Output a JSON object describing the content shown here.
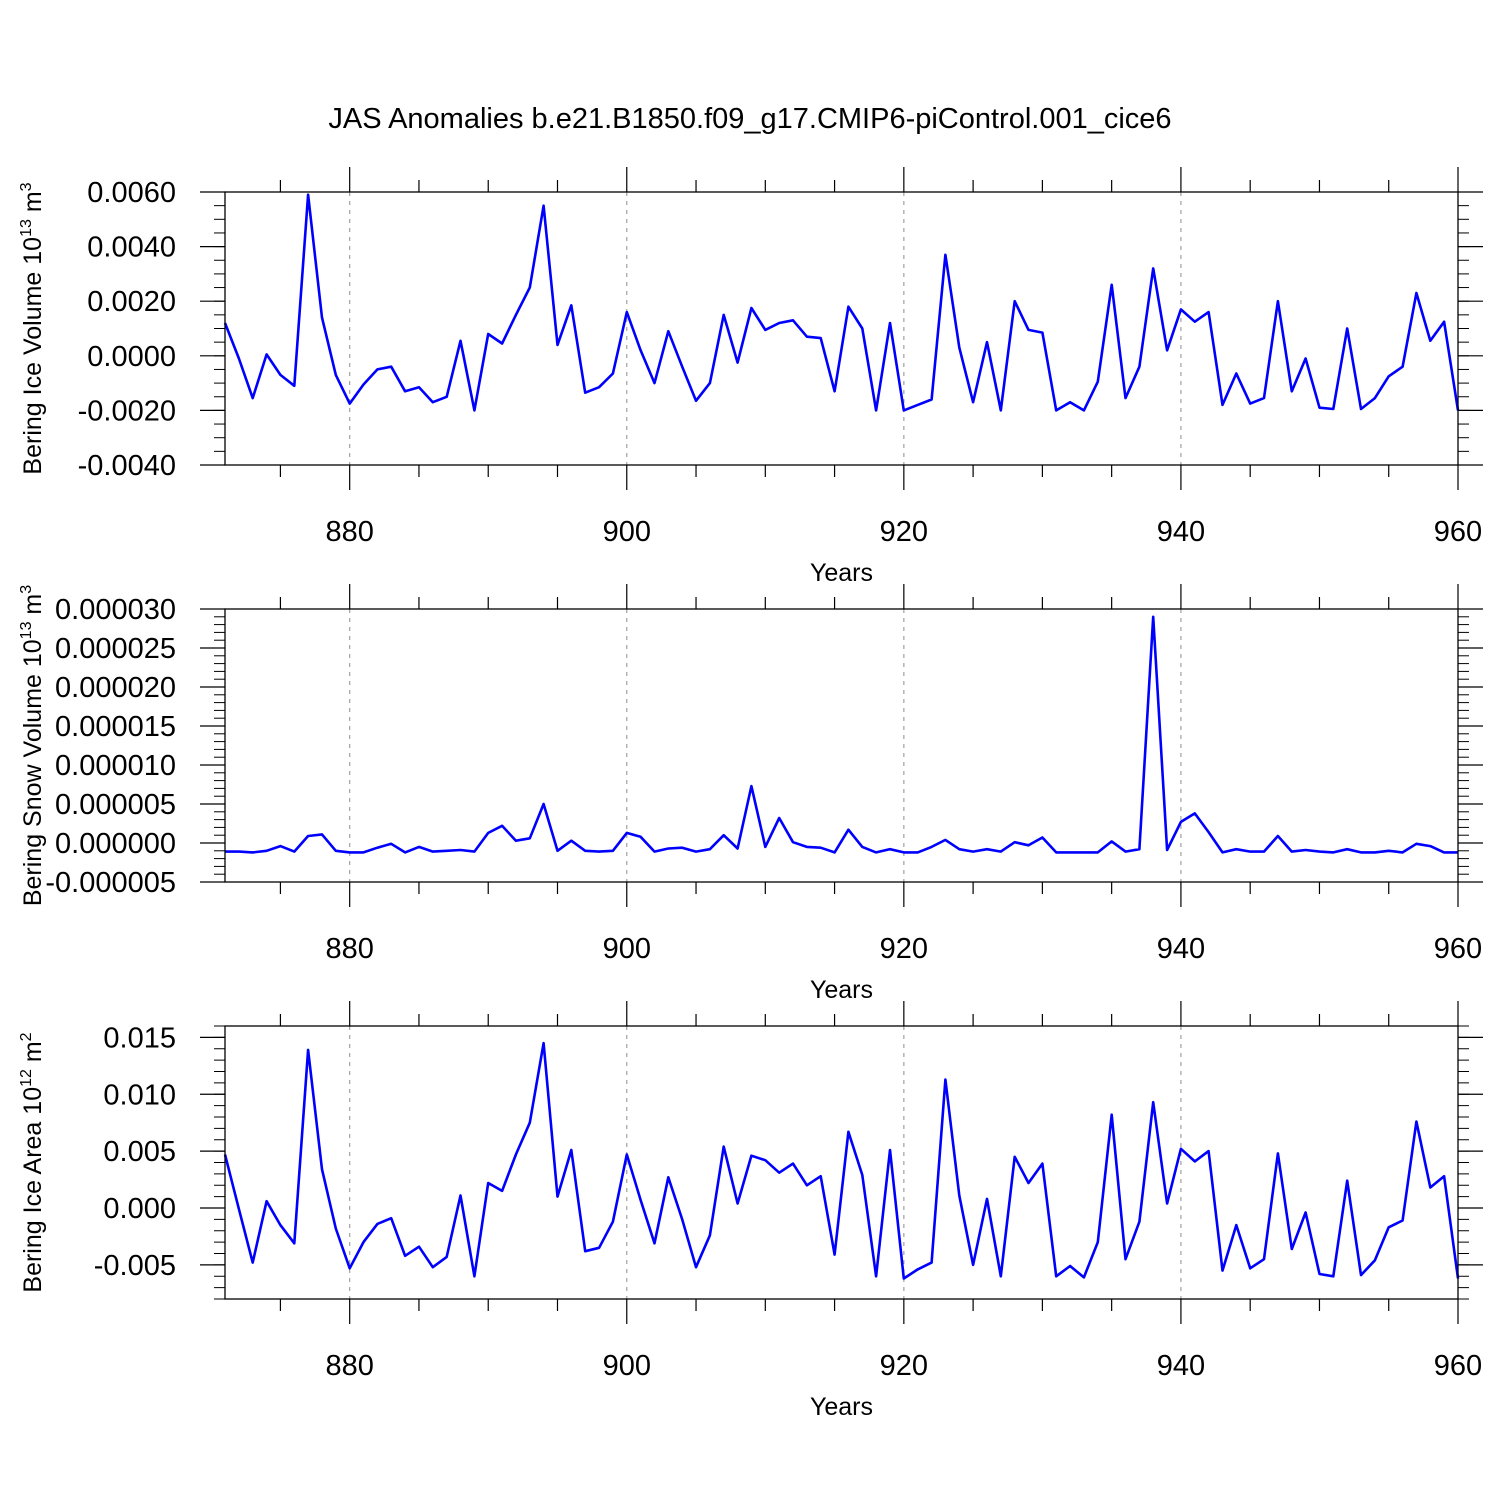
{
  "title": "JAS Anomalies b.e21.B1850.f09_g17.CMIP6-piControl.001_cice6",
  "line_color": "#0000ff",
  "grid_color": "#a0a0a0",
  "chart_data": [
    {
      "type": "line",
      "ylabel_main": "Bering Ice Volume 10",
      "ylabel_exp": "13",
      "ylabel_unit": " m",
      "ylabel_unit_exp": "3",
      "xlabel": "Years",
      "xlim": [
        871,
        960
      ],
      "ylim": [
        -0.004,
        0.006
      ],
      "yticks": [
        -0.004,
        -0.002,
        0.0,
        0.002,
        0.004,
        0.006
      ],
      "ytick_labels": [
        "-0.0040",
        "-0.0020",
        "0.0000",
        "0.0020",
        "0.0040",
        "0.0060"
      ],
      "yminor": 0.0005,
      "xticks": [
        880,
        900,
        920,
        940,
        960
      ],
      "xtick_labels": [
        "880",
        "900",
        "920",
        "940",
        "960"
      ],
      "grid": "vertical-dashed",
      "x_start": 871,
      "values": [
        0.0012,
        -0.0001,
        -0.00155,
        5e-05,
        -0.0007,
        -0.0011,
        0.0059,
        0.0014,
        -0.0007,
        -0.00175,
        -0.00105,
        -0.0005,
        -0.0004,
        -0.0013,
        -0.00115,
        -0.0017,
        -0.0015,
        0.00055,
        -0.002,
        0.0008,
        0.00045,
        0.0015,
        0.0025,
        0.0055,
        0.0004,
        0.00185,
        -0.00135,
        -0.00115,
        -0.00065,
        0.0016,
        0.0002,
        -0.001,
        0.0009,
        -0.0004,
        -0.00165,
        -0.001,
        0.0015,
        -0.00025,
        0.00175,
        0.00095,
        0.0012,
        0.0013,
        0.0007,
        0.00065,
        -0.0013,
        0.0018,
        0.001,
        -0.002,
        0.0012,
        -0.002,
        -0.0018,
        -0.0016,
        0.0037,
        0.0003,
        -0.0017,
        0.0005,
        -0.002,
        0.002,
        0.00095,
        0.00085,
        -0.002,
        -0.0017,
        -0.002,
        -0.00095,
        0.0026,
        -0.00155,
        -0.0004,
        0.0032,
        0.0002,
        0.0017,
        0.00125,
        0.0016,
        -0.0018,
        -0.00065,
        -0.00175,
        -0.00155,
        0.002,
        -0.0013,
        -0.0001,
        -0.0019,
        -0.00195,
        0.001,
        -0.00195,
        -0.00155,
        -0.00075,
        -0.0004,
        0.0023,
        0.00055,
        0.00125,
        -0.002
      ]
    },
    {
      "type": "line",
      "ylabel_main": "Bering Snow Volume 10",
      "ylabel_exp": "13",
      "ylabel_unit": " m",
      "ylabel_unit_exp": "3",
      "xlabel": "Years",
      "xlim": [
        871,
        960
      ],
      "ylim": [
        -5e-06,
        3e-05
      ],
      "yticks": [
        -5e-06,
        0.0,
        5e-06,
        1e-05,
        1.5e-05,
        2e-05,
        2.5e-05,
        3e-05
      ],
      "ytick_labels": [
        "-0.000005",
        "0.000000",
        "0.000005",
        "0.000010",
        "0.000015",
        "0.000020",
        "0.000025",
        "0.000030"
      ],
      "yminor": 1e-06,
      "xticks": [
        880,
        900,
        920,
        940,
        960
      ],
      "xtick_labels": [
        "880",
        "900",
        "920",
        "940",
        "960"
      ],
      "grid": "vertical-dashed",
      "x_start": 871,
      "values": [
        -1.1e-06,
        -1.1e-06,
        -1.2e-06,
        -1e-06,
        -4e-07,
        -1.1e-06,
        9e-07,
        1.1e-06,
        -1e-06,
        -1.2e-06,
        -1.2e-06,
        -6e-07,
        -1e-07,
        -1.2e-06,
        -5e-07,
        -1.1e-06,
        -1e-06,
        -9e-07,
        -1.1e-06,
        1.3e-06,
        2.2e-06,
        3e-07,
        6e-07,
        5e-06,
        -1e-06,
        3e-07,
        -1e-06,
        -1.1e-06,
        -1e-06,
        1.3e-06,
        8e-07,
        -1.1e-06,
        -7e-07,
        -6e-07,
        -1.1e-06,
        -8e-07,
        1e-06,
        -7e-07,
        7.3e-06,
        -5e-07,
        3.2e-06,
        1e-07,
        -5e-07,
        -6e-07,
        -1.2e-06,
        1.7e-06,
        -5e-07,
        -1.2e-06,
        -8e-07,
        -1.2e-06,
        -1.2e-06,
        -5e-07,
        4e-07,
        -8e-07,
        -1.1e-06,
        -8e-07,
        -1.1e-06,
        1e-07,
        -3e-07,
        7e-07,
        -1.2e-06,
        -1.2e-06,
        -1.2e-06,
        -1.2e-06,
        2e-07,
        -1.1e-06,
        -8e-07,
        2.9e-05,
        -9e-07,
        2.7e-06,
        3.8e-06,
        1.4e-06,
        -1.2e-06,
        -8e-07,
        -1.1e-06,
        -1.1e-06,
        9e-07,
        -1.1e-06,
        -9e-07,
        -1.1e-06,
        -1.2e-06,
        -8e-07,
        -1.2e-06,
        -1.2e-06,
        -1e-06,
        -1.2e-06,
        -1e-07,
        -4e-07,
        -1.2e-06,
        -1.2e-06
      ]
    },
    {
      "type": "line",
      "ylabel_main": "Bering Ice Area 10",
      "ylabel_exp": "12",
      "ylabel_unit": " m",
      "ylabel_unit_exp": "2",
      "xlabel": "Years",
      "xlim": [
        871,
        960
      ],
      "ylim": [
        -0.008,
        0.016
      ],
      "yticks": [
        -0.005,
        0.0,
        0.005,
        0.01,
        0.015
      ],
      "ytick_labels": [
        "-0.005",
        "0.000",
        "0.005",
        "0.010",
        "0.015"
      ],
      "yminor": 0.001,
      "xticks": [
        880,
        900,
        920,
        940,
        960
      ],
      "xtick_labels": [
        "880",
        "900",
        "920",
        "940",
        "960"
      ],
      "grid": "vertical-dashed",
      "x_start": 871,
      "values": [
        0.0047,
        -0.0001,
        -0.0048,
        0.0006,
        -0.0015,
        -0.0031,
        0.0139,
        0.0034,
        -0.0018,
        -0.0053,
        -0.003,
        -0.0014,
        -0.0009,
        -0.0042,
        -0.0034,
        -0.0052,
        -0.0043,
        0.0011,
        -0.006,
        0.0022,
        0.0015,
        0.0047,
        0.0075,
        0.0145,
        0.001,
        0.0051,
        -0.0038,
        -0.0035,
        -0.0012,
        0.0047,
        0.0007,
        -0.0031,
        0.0027,
        -0.001,
        -0.0052,
        -0.0024,
        0.0054,
        0.0004,
        0.0046,
        0.0042,
        0.0031,
        0.0039,
        0.002,
        0.0028,
        -0.0041,
        0.0067,
        0.0029,
        -0.006,
        0.0051,
        -0.0062,
        -0.0054,
        -0.0048,
        0.0113,
        0.0011,
        -0.005,
        0.0008,
        -0.006,
        0.0045,
        0.0022,
        0.0039,
        -0.006,
        -0.0051,
        -0.0061,
        -0.003,
        0.0082,
        -0.0045,
        -0.0012,
        0.0093,
        0.0004,
        0.0052,
        0.0041,
        0.005,
        -0.0055,
        -0.0015,
        -0.0053,
        -0.0045,
        0.0048,
        -0.0036,
        -0.0004,
        -0.0058,
        -0.006,
        0.0024,
        -0.0059,
        -0.0046,
        -0.0017,
        -0.0011,
        0.0076,
        0.0018,
        0.0028,
        -0.0062
      ]
    }
  ]
}
